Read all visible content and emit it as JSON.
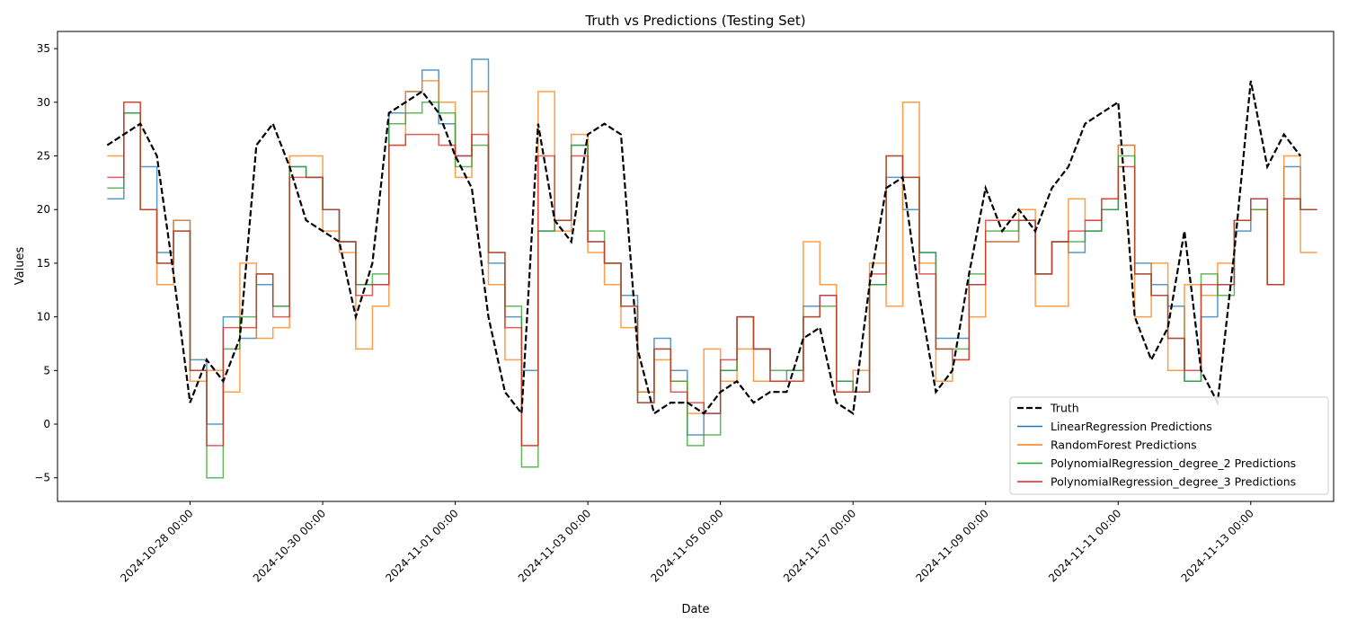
{
  "chart_data": {
    "type": "line",
    "title": "Truth vs Predictions (Testing Set)",
    "xlabel": "Date",
    "ylabel": "Values",
    "xlim": [
      "2024-10-26 00:00",
      "2024-11-14 06:00"
    ],
    "ylim": [
      -7.2,
      36.6
    ],
    "x_ticks": [
      "2024-10-28 00:00",
      "2024-10-30 00:00",
      "2024-11-01 00:00",
      "2024-11-03 00:00",
      "2024-11-05 00:00",
      "2024-11-07 00:00",
      "2024-11-09 00:00",
      "2024-11-11 00:00",
      "2024-11-13 00:00"
    ],
    "y_ticks": [
      -5,
      0,
      5,
      10,
      15,
      20,
      25,
      30,
      35
    ],
    "grid": false,
    "legend_position": "lower-right",
    "series": [
      {
        "name": "Truth",
        "color": "#000000",
        "style": "dashed",
        "x": [
          "2024-10-26 18:00",
          "2024-10-27 00:00",
          "2024-10-27 06:00",
          "2024-10-27 12:00",
          "2024-10-27 18:00",
          "2024-10-28 00:00",
          "2024-10-28 06:00",
          "2024-10-28 12:00",
          "2024-10-28 18:00",
          "2024-10-29 00:00",
          "2024-10-29 06:00",
          "2024-10-29 12:00",
          "2024-10-29 18:00",
          "2024-10-30 00:00",
          "2024-10-30 06:00",
          "2024-10-30 12:00",
          "2024-10-30 18:00",
          "2024-10-31 00:00",
          "2024-10-31 06:00",
          "2024-10-31 12:00",
          "2024-10-31 18:00",
          "2024-11-01 00:00",
          "2024-11-01 06:00",
          "2024-11-01 12:00",
          "2024-11-01 18:00",
          "2024-11-02 00:00",
          "2024-11-02 06:00",
          "2024-11-02 12:00",
          "2024-11-02 18:00",
          "2024-11-03 00:00",
          "2024-11-03 06:00",
          "2024-11-03 12:00",
          "2024-11-03 18:00",
          "2024-11-04 00:00",
          "2024-11-04 06:00",
          "2024-11-04 12:00",
          "2024-11-04 18:00",
          "2024-11-05 00:00",
          "2024-11-05 06:00",
          "2024-11-05 12:00",
          "2024-11-05 18:00",
          "2024-11-06 00:00",
          "2024-11-06 06:00",
          "2024-11-06 12:00",
          "2024-11-06 18:00",
          "2024-11-07 00:00",
          "2024-11-07 06:00",
          "2024-11-07 12:00",
          "2024-11-07 18:00",
          "2024-11-08 00:00",
          "2024-11-08 06:00",
          "2024-11-08 12:00",
          "2024-11-08 18:00",
          "2024-11-09 00:00",
          "2024-11-09 06:00",
          "2024-11-09 12:00",
          "2024-11-09 18:00",
          "2024-11-10 00:00",
          "2024-11-10 06:00",
          "2024-11-10 12:00",
          "2024-11-10 18:00",
          "2024-11-11 00:00",
          "2024-11-11 06:00",
          "2024-11-11 12:00",
          "2024-11-11 18:00",
          "2024-11-12 00:00",
          "2024-11-12 06:00",
          "2024-11-12 12:00",
          "2024-11-12 18:00",
          "2024-11-13 00:00",
          "2024-11-13 06:00",
          "2024-11-13 12:00",
          "2024-11-13 18:00"
        ],
        "y": [
          26,
          27,
          28,
          25,
          14,
          2,
          6,
          4,
          8,
          26,
          28,
          24,
          19,
          18,
          17,
          10,
          15,
          29,
          30,
          31,
          29,
          25,
          22,
          10,
          3,
          1,
          28,
          19,
          17,
          27,
          28,
          27,
          7,
          1,
          2,
          2,
          1,
          3,
          4,
          2,
          3,
          3,
          8,
          9,
          2,
          1,
          13,
          22,
          23,
          12,
          3,
          5,
          14,
          22,
          18,
          20,
          18,
          22,
          24,
          28,
          29,
          30,
          10,
          6,
          9,
          18,
          5,
          2,
          16,
          32,
          24,
          27,
          25
        ]
      },
      {
        "name": "LinearRegression Predictions",
        "color": "#1f77b4",
        "style": "steps",
        "x": [
          "2024-10-26 18:00",
          "2024-10-27 00:00",
          "2024-10-27 06:00",
          "2024-10-27 12:00",
          "2024-10-27 18:00",
          "2024-10-28 00:00",
          "2024-10-28 06:00",
          "2024-10-28 12:00",
          "2024-10-28 18:00",
          "2024-10-29 00:00",
          "2024-10-29 06:00",
          "2024-10-29 12:00",
          "2024-10-29 18:00",
          "2024-10-30 00:00",
          "2024-10-30 06:00",
          "2024-10-30 12:00",
          "2024-10-30 18:00",
          "2024-10-31 00:00",
          "2024-10-31 06:00",
          "2024-10-31 12:00",
          "2024-10-31 18:00",
          "2024-11-01 00:00",
          "2024-11-01 06:00",
          "2024-11-01 12:00",
          "2024-11-01 18:00",
          "2024-11-02 00:00",
          "2024-11-02 06:00",
          "2024-11-02 12:00",
          "2024-11-02 18:00",
          "2024-11-03 00:00",
          "2024-11-03 06:00",
          "2024-11-03 12:00",
          "2024-11-03 18:00",
          "2024-11-04 00:00",
          "2024-11-04 06:00",
          "2024-11-04 12:00",
          "2024-11-04 18:00",
          "2024-11-05 00:00",
          "2024-11-05 06:00",
          "2024-11-05 12:00",
          "2024-11-05 18:00",
          "2024-11-06 00:00",
          "2024-11-06 06:00",
          "2024-11-06 12:00",
          "2024-11-06 18:00",
          "2024-11-07 00:00",
          "2024-11-07 06:00",
          "2024-11-07 12:00",
          "2024-11-07 18:00",
          "2024-11-08 00:00",
          "2024-11-08 06:00",
          "2024-11-08 12:00",
          "2024-11-08 18:00",
          "2024-11-09 00:00",
          "2024-11-09 06:00",
          "2024-11-09 12:00",
          "2024-11-09 18:00",
          "2024-11-10 00:00",
          "2024-11-10 06:00",
          "2024-11-10 12:00",
          "2024-11-10 18:00",
          "2024-11-11 00:00",
          "2024-11-11 06:00",
          "2024-11-11 12:00",
          "2024-11-11 18:00",
          "2024-11-12 00:00",
          "2024-11-12 06:00",
          "2024-11-12 12:00",
          "2024-11-12 18:00",
          "2024-11-13 00:00",
          "2024-11-13 06:00",
          "2024-11-13 12:00",
          "2024-11-13 18:00"
        ],
        "y": [
          21,
          29,
          24,
          16,
          19,
          6,
          0,
          10,
          8,
          13,
          11,
          24,
          23,
          20,
          17,
          13,
          13,
          29,
          31,
          33,
          28,
          25,
          34,
          15,
          10,
          5,
          18,
          19,
          26,
          17,
          15,
          12,
          3,
          8,
          5,
          -1,
          1,
          5,
          10,
          7,
          4,
          5,
          11,
          12,
          4,
          3,
          13,
          23,
          20,
          16,
          8,
          8,
          13,
          17,
          17,
          19,
          14,
          17,
          16,
          18,
          20,
          26,
          15,
          13,
          11,
          4,
          10,
          13,
          18,
          21,
          13,
          24,
          20
        ]
      },
      {
        "name": "RandomForest Predictions",
        "color": "#ff7f0e",
        "style": "steps",
        "x": [
          "2024-10-26 18:00",
          "2024-10-27 00:00",
          "2024-10-27 06:00",
          "2024-10-27 12:00",
          "2024-10-27 18:00",
          "2024-10-28 00:00",
          "2024-10-28 06:00",
          "2024-10-28 12:00",
          "2024-10-28 18:00",
          "2024-10-29 00:00",
          "2024-10-29 06:00",
          "2024-10-29 12:00",
          "2024-10-29 18:00",
          "2024-10-30 00:00",
          "2024-10-30 06:00",
          "2024-10-30 12:00",
          "2024-10-30 18:00",
          "2024-10-31 00:00",
          "2024-10-31 06:00",
          "2024-10-31 12:00",
          "2024-10-31 18:00",
          "2024-11-01 00:00",
          "2024-11-01 06:00",
          "2024-11-01 12:00",
          "2024-11-01 18:00",
          "2024-11-02 00:00",
          "2024-11-02 06:00",
          "2024-11-02 12:00",
          "2024-11-02 18:00",
          "2024-11-03 00:00",
          "2024-11-03 06:00",
          "2024-11-03 12:00",
          "2024-11-03 18:00",
          "2024-11-04 00:00",
          "2024-11-04 06:00",
          "2024-11-04 12:00",
          "2024-11-04 18:00",
          "2024-11-05 00:00",
          "2024-11-05 06:00",
          "2024-11-05 12:00",
          "2024-11-05 18:00",
          "2024-11-06 00:00",
          "2024-11-06 06:00",
          "2024-11-06 12:00",
          "2024-11-06 18:00",
          "2024-11-07 00:00",
          "2024-11-07 06:00",
          "2024-11-07 12:00",
          "2024-11-07 18:00",
          "2024-11-08 00:00",
          "2024-11-08 06:00",
          "2024-11-08 12:00",
          "2024-11-08 18:00",
          "2024-11-09 00:00",
          "2024-11-09 06:00",
          "2024-11-09 12:00",
          "2024-11-09 18:00",
          "2024-11-10 00:00",
          "2024-11-10 06:00",
          "2024-11-10 12:00",
          "2024-11-10 18:00",
          "2024-11-11 00:00",
          "2024-11-11 06:00",
          "2024-11-11 12:00",
          "2024-11-11 18:00",
          "2024-11-12 00:00",
          "2024-11-12 06:00",
          "2024-11-12 12:00",
          "2024-11-12 18:00",
          "2024-11-13 00:00",
          "2024-11-13 06:00",
          "2024-11-13 12:00",
          "2024-11-13 18:00"
        ],
        "y": [
          25,
          30,
          20,
          13,
          19,
          4,
          5,
          3,
          15,
          8,
          9,
          25,
          25,
          18,
          16,
          7,
          11,
          26,
          31,
          32,
          30,
          23,
          31,
          13,
          6,
          -2,
          31,
          18,
          27,
          16,
          13,
          9,
          3,
          6,
          4,
          1,
          7,
          4,
          7,
          4,
          4,
          4,
          17,
          13,
          3,
          5,
          15,
          11,
          30,
          15,
          4,
          6,
          10,
          17,
          17,
          20,
          11,
          11,
          21,
          19,
          21,
          26,
          10,
          15,
          5,
          13,
          12,
          15,
          19,
          20,
          13,
          25,
          16
        ]
      },
      {
        "name": "PolynomialRegression_degree_2 Predictions",
        "color": "#2ca02c",
        "style": "steps",
        "x": [
          "2024-10-26 18:00",
          "2024-10-27 00:00",
          "2024-10-27 06:00",
          "2024-10-27 12:00",
          "2024-10-27 18:00",
          "2024-10-28 00:00",
          "2024-10-28 06:00",
          "2024-10-28 12:00",
          "2024-10-28 18:00",
          "2024-10-29 00:00",
          "2024-10-29 06:00",
          "2024-10-29 12:00",
          "2024-10-29 18:00",
          "2024-10-30 00:00",
          "2024-10-30 06:00",
          "2024-10-30 12:00",
          "2024-10-30 18:00",
          "2024-10-31 00:00",
          "2024-10-31 06:00",
          "2024-10-31 12:00",
          "2024-10-31 18:00",
          "2024-11-01 00:00",
          "2024-11-01 06:00",
          "2024-11-01 12:00",
          "2024-11-01 18:00",
          "2024-11-02 00:00",
          "2024-11-02 06:00",
          "2024-11-02 12:00",
          "2024-11-02 18:00",
          "2024-11-03 00:00",
          "2024-11-03 06:00",
          "2024-11-03 12:00",
          "2024-11-03 18:00",
          "2024-11-04 00:00",
          "2024-11-04 06:00",
          "2024-11-04 12:00",
          "2024-11-04 18:00",
          "2024-11-05 00:00",
          "2024-11-05 06:00",
          "2024-11-05 12:00",
          "2024-11-05 18:00",
          "2024-11-06 00:00",
          "2024-11-06 06:00",
          "2024-11-06 12:00",
          "2024-11-06 18:00",
          "2024-11-07 00:00",
          "2024-11-07 06:00",
          "2024-11-07 12:00",
          "2024-11-07 18:00",
          "2024-11-08 00:00",
          "2024-11-08 06:00",
          "2024-11-08 12:00",
          "2024-11-08 18:00",
          "2024-11-09 00:00",
          "2024-11-09 06:00",
          "2024-11-09 12:00",
          "2024-11-09 18:00",
          "2024-11-10 00:00",
          "2024-11-10 06:00",
          "2024-11-10 12:00",
          "2024-11-10 18:00",
          "2024-11-11 00:00",
          "2024-11-11 06:00",
          "2024-11-11 12:00",
          "2024-11-11 18:00",
          "2024-11-12 00:00",
          "2024-11-12 06:00",
          "2024-11-12 12:00",
          "2024-11-12 18:00",
          "2024-11-13 00:00",
          "2024-11-13 06:00",
          "2024-11-13 12:00",
          "2024-11-13 18:00"
        ],
        "y": [
          22,
          29,
          20,
          15,
          18,
          5,
          -5,
          7,
          10,
          14,
          11,
          24,
          23,
          20,
          17,
          13,
          14,
          28,
          29,
          30,
          29,
          24,
          26,
          16,
          11,
          -4,
          18,
          19,
          26,
          18,
          15,
          11,
          2,
          7,
          4,
          -2,
          -1,
          5,
          10,
          7,
          5,
          5,
          10,
          11,
          4,
          3,
          13,
          25,
          23,
          16,
          7,
          7,
          14,
          18,
          18,
          19,
          14,
          17,
          17,
          18,
          20,
          25,
          14,
          12,
          8,
          4,
          14,
          12,
          19,
          20,
          13,
          21,
          20
        ]
      },
      {
        "name": "PolynomialRegression_degree_3 Predictions",
        "color": "#d62728",
        "style": "steps",
        "x": [
          "2024-10-26 18:00",
          "2024-10-27 00:00",
          "2024-10-27 06:00",
          "2024-10-27 12:00",
          "2024-10-27 18:00",
          "2024-10-28 00:00",
          "2024-10-28 06:00",
          "2024-10-28 12:00",
          "2024-10-28 18:00",
          "2024-10-29 00:00",
          "2024-10-29 06:00",
          "2024-10-29 12:00",
          "2024-10-29 18:00",
          "2024-10-30 00:00",
          "2024-10-30 06:00",
          "2024-10-30 12:00",
          "2024-10-30 18:00",
          "2024-10-31 00:00",
          "2024-10-31 06:00",
          "2024-10-31 12:00",
          "2024-10-31 18:00",
          "2024-11-01 00:00",
          "2024-11-01 06:00",
          "2024-11-01 12:00",
          "2024-11-01 18:00",
          "2024-11-02 00:00",
          "2024-11-02 06:00",
          "2024-11-02 12:00",
          "2024-11-02 18:00",
          "2024-11-03 00:00",
          "2024-11-03 06:00",
          "2024-11-03 12:00",
          "2024-11-03 18:00",
          "2024-11-04 00:00",
          "2024-11-04 06:00",
          "2024-11-04 12:00",
          "2024-11-04 18:00",
          "2024-11-05 00:00",
          "2024-11-05 06:00",
          "2024-11-05 12:00",
          "2024-11-05 18:00",
          "2024-11-06 00:00",
          "2024-11-06 06:00",
          "2024-11-06 12:00",
          "2024-11-06 18:00",
          "2024-11-07 00:00",
          "2024-11-07 06:00",
          "2024-11-07 12:00",
          "2024-11-07 18:00",
          "2024-11-08 00:00",
          "2024-11-08 06:00",
          "2024-11-08 12:00",
          "2024-11-08 18:00",
          "2024-11-09 00:00",
          "2024-11-09 06:00",
          "2024-11-09 12:00",
          "2024-11-09 18:00",
          "2024-11-10 00:00",
          "2024-11-10 06:00",
          "2024-11-10 12:00",
          "2024-11-10 18:00",
          "2024-11-11 00:00",
          "2024-11-11 06:00",
          "2024-11-11 12:00",
          "2024-11-11 18:00",
          "2024-11-12 00:00",
          "2024-11-12 06:00",
          "2024-11-12 12:00",
          "2024-11-12 18:00",
          "2024-11-13 00:00",
          "2024-11-13 06:00",
          "2024-11-13 12:00",
          "2024-11-13 18:00"
        ],
        "y": [
          23,
          30,
          20,
          15,
          18,
          5,
          -2,
          9,
          9,
          14,
          10,
          23,
          23,
          20,
          17,
          12,
          13,
          26,
          27,
          27,
          26,
          25,
          27,
          16,
          9,
          -2,
          25,
          19,
          25,
          17,
          15,
          11,
          2,
          7,
          3,
          2,
          1,
          6,
          10,
          7,
          4,
          4,
          10,
          12,
          3,
          3,
          14,
          25,
          23,
          14,
          7,
          6,
          13,
          19,
          19,
          19,
          14,
          17,
          18,
          19,
          21,
          24,
          14,
          12,
          8,
          5,
          13,
          13,
          19,
          21,
          13,
          21,
          20
        ]
      }
    ]
  }
}
